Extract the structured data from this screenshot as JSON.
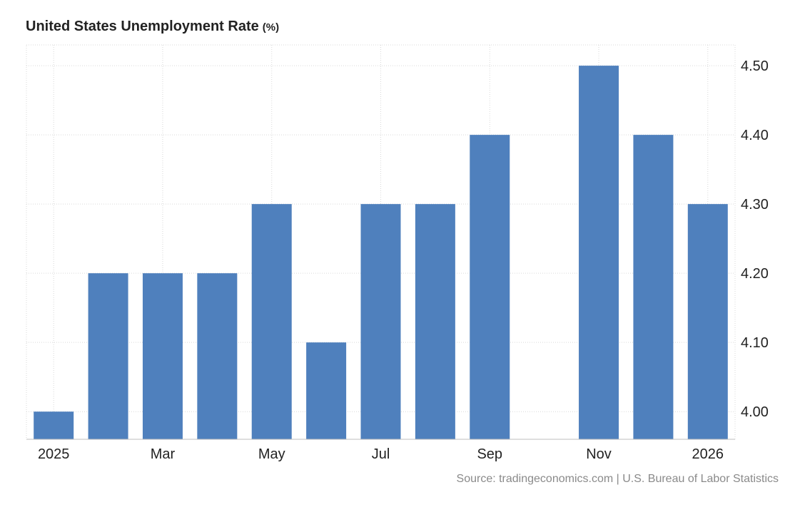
{
  "chart_data": {
    "type": "bar",
    "title": "United States Unemployment Rate",
    "unit": "(%)",
    "categories": [
      "Jan 2025",
      "Feb 2025",
      "Mar 2025",
      "Apr 2025",
      "May 2025",
      "Jun 2025",
      "Jul 2025",
      "Aug 2025",
      "Sep 2025",
      "Oct 2025",
      "Nov 2025",
      "Dec 2025",
      "Jan 2026"
    ],
    "values": [
      4.0,
      4.2,
      4.2,
      4.2,
      4.3,
      4.1,
      4.3,
      4.3,
      4.4,
      null,
      4.5,
      4.4,
      4.3
    ],
    "x_tick_labels": [
      {
        "category": "Jan 2025",
        "label": "2025"
      },
      {
        "category": "Mar 2025",
        "label": "Mar"
      },
      {
        "category": "May 2025",
        "label": "May"
      },
      {
        "category": "Jul 2025",
        "label": "Jul"
      },
      {
        "category": "Sep 2025",
        "label": "Sep"
      },
      {
        "category": "Nov 2025",
        "label": "Nov"
      },
      {
        "category": "Jan 2026",
        "label": "2026"
      }
    ],
    "y_ticks": [
      4.0,
      4.1,
      4.2,
      4.3,
      4.4,
      4.5
    ],
    "y_tick_labels": [
      "4.00",
      "4.10",
      "4.20",
      "4.30",
      "4.40",
      "4.50"
    ],
    "ylim": [
      3.96,
      4.53
    ],
    "y_axis_position": "right",
    "grid": true,
    "bar_color": "#4f80bd",
    "source": "Source: tradingeconomics.com | U.S. Bureau of Labor Statistics"
  }
}
